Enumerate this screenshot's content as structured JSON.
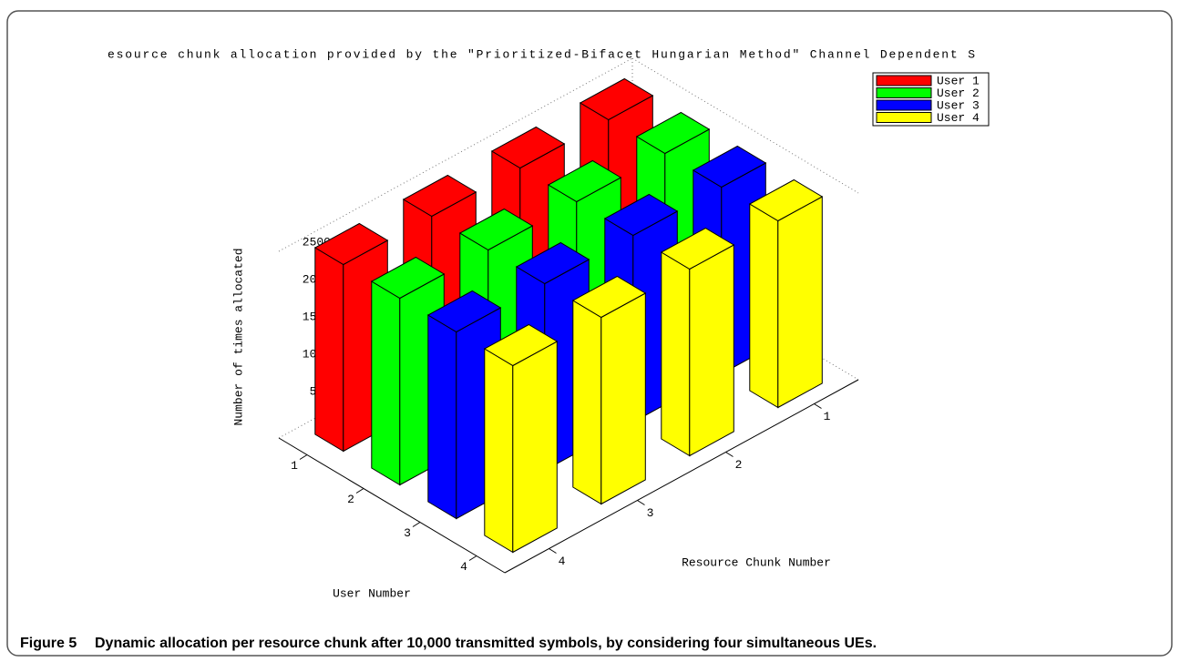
{
  "chart_data": {
    "type": "bar3d",
    "title": "esource chunk allocation provided by the \"Prioritized-Bifacet Hungarian Method\" Channel Dependent S",
    "xlabel": "User Number",
    "ylabel": "Resource Chunk Number",
    "zlabel": "Number of times allocated",
    "users": [
      "1",
      "2",
      "3",
      "4"
    ],
    "chunks": [
      "1",
      "2",
      "3",
      "4"
    ],
    "series": [
      {
        "name": "User 1",
        "color": "#ff0000",
        "values": [
          2500,
          2500,
          2500,
          2500
        ]
      },
      {
        "name": "User 2",
        "color": "#00ff00",
        "values": [
          2500,
          2500,
          2500,
          2500
        ]
      },
      {
        "name": "User 3",
        "color": "#0000ff",
        "values": [
          2500,
          2500,
          2500,
          2500
        ]
      },
      {
        "name": "User 4",
        "color": "#ffff00",
        "values": [
          2500,
          2500,
          2500,
          2500
        ]
      }
    ],
    "zlim": [
      0,
      2500
    ],
    "zticks": [
      0,
      500,
      1000,
      1500,
      2000,
      2500
    ],
    "grid": true,
    "legend": "upper right"
  },
  "caption": {
    "label": "Figure 5",
    "text": "Dynamic allocation per resource chunk after 10,000 transmitted symbols, by considering four simultaneous UEs."
  }
}
